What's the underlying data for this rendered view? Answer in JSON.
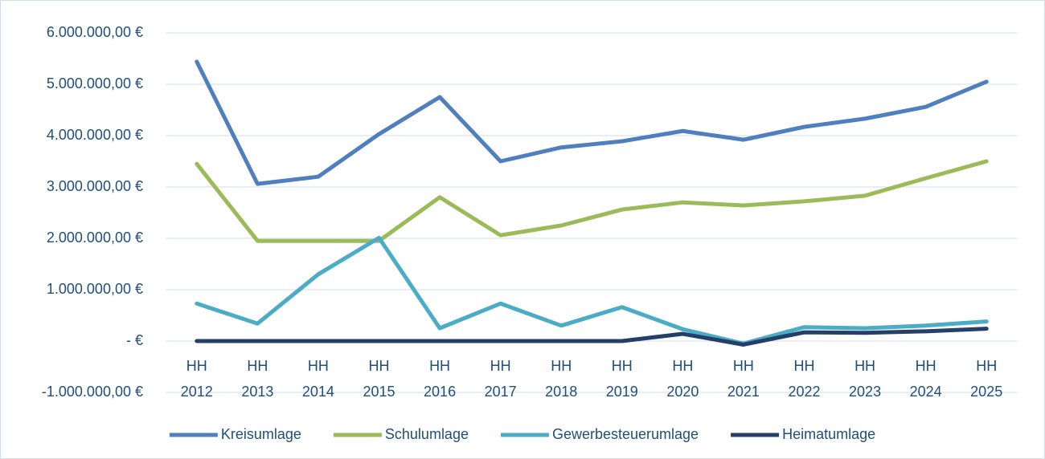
{
  "chart_data": {
    "type": "line",
    "categories": [
      "HH 2012",
      "HH 2013",
      "HH 2014",
      "HH 2015",
      "HH 2016",
      "HH 2017",
      "HH 2018",
      "HH 2019",
      "HH 2020",
      "HH 2021",
      "HH 2022",
      "HH 2023",
      "HH 2024",
      "HH 2025"
    ],
    "series": [
      {
        "name": "Kreisumlage",
        "color": "#4f7fbf",
        "values": [
          5440000,
          3060000,
          3200000,
          4030000,
          4750000,
          3500000,
          3770000,
          3890000,
          4090000,
          3920000,
          4170000,
          4330000,
          4560000,
          5050000
        ]
      },
      {
        "name": "Schulumlage",
        "color": "#9bbb59",
        "values": [
          3450000,
          1950000,
          1950000,
          1950000,
          2800000,
          2060000,
          2250000,
          2560000,
          2700000,
          2640000,
          2720000,
          2830000,
          3170000,
          3500000
        ]
      },
      {
        "name": "Gewerbesteuerumlage",
        "color": "#4bacc6",
        "values": [
          730000,
          340000,
          1300000,
          2010000,
          250000,
          730000,
          300000,
          660000,
          230000,
          -50000,
          270000,
          250000,
          300000,
          380000
        ]
      },
      {
        "name": "Heimatumlage",
        "color": "#243f68",
        "values": [
          0,
          0,
          0,
          0,
          0,
          0,
          0,
          0,
          140000,
          -70000,
          170000,
          160000,
          190000,
          240000
        ]
      }
    ],
    "ylim": [
      -1000000,
      6000000
    ],
    "yticks": [
      {
        "value": -1000000,
        "label": "-1.000.000,00 €"
      },
      {
        "value": 0,
        "label": "-   €"
      },
      {
        "value": 1000000,
        "label": "1.000.000,00 €"
      },
      {
        "value": 2000000,
        "label": "2.000.000,00 €"
      },
      {
        "value": 3000000,
        "label": "3.000.000,00 €"
      },
      {
        "value": 4000000,
        "label": "4.000.000,00 €"
      },
      {
        "value": 5000000,
        "label": "5.000.000,00 €"
      },
      {
        "value": 6000000,
        "label": "6.000.000,00 €"
      }
    ],
    "grid": true,
    "legend": "bottom"
  }
}
